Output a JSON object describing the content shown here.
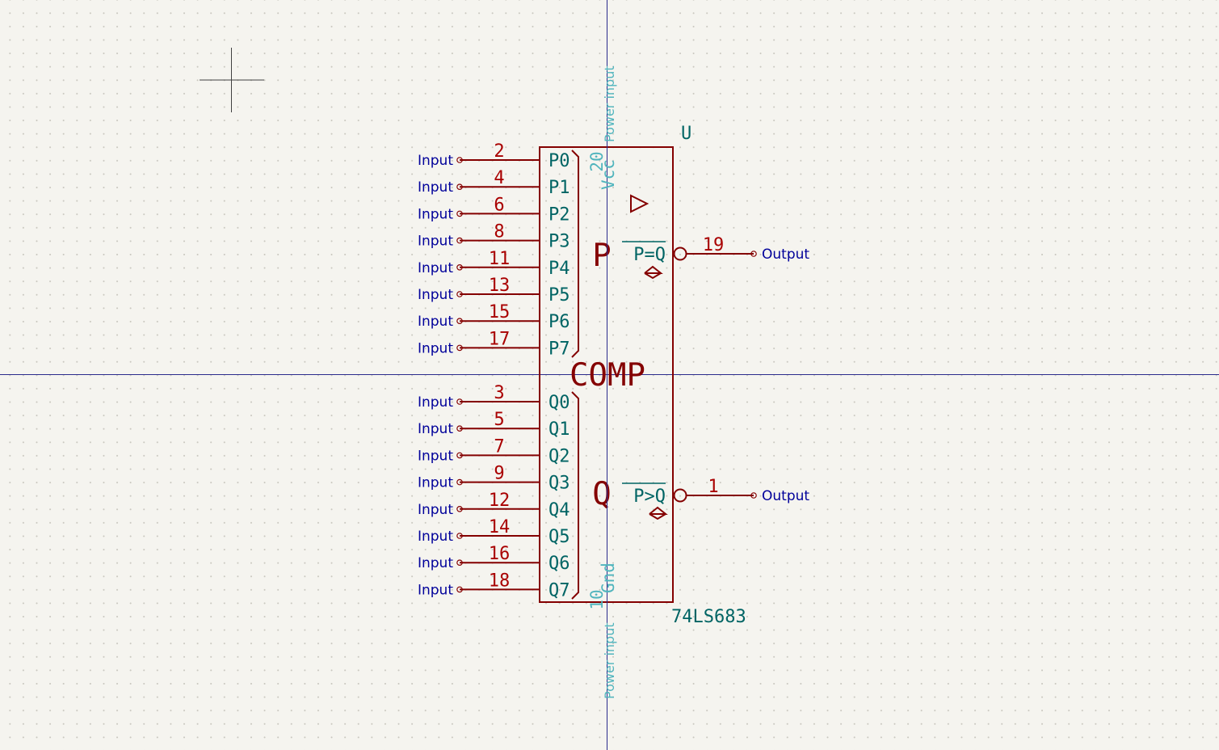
{
  "component": {
    "reference": "U",
    "value": "74LS683",
    "function_label": "COMP",
    "group_p_label": "P",
    "group_q_label": "Q",
    "buffer_symbol": "▷",
    "hysteresis_symbol": "◇"
  },
  "power_pins": {
    "vcc": {
      "number": "20",
      "name": "Vcc",
      "type": "Power input"
    },
    "gnd": {
      "number": "10",
      "name": "Gnd",
      "type": "Power input"
    }
  },
  "input_pins": [
    {
      "name": "P0",
      "number": "2",
      "type": "Input"
    },
    {
      "name": "P1",
      "number": "4",
      "type": "Input"
    },
    {
      "name": "P2",
      "number": "6",
      "type": "Input"
    },
    {
      "name": "P3",
      "number": "8",
      "type": "Input"
    },
    {
      "name": "P4",
      "number": "11",
      "type": "Input"
    },
    {
      "name": "P5",
      "number": "13",
      "type": "Input"
    },
    {
      "name": "P6",
      "number": "15",
      "type": "Input"
    },
    {
      "name": "P7",
      "number": "17",
      "type": "Input"
    },
    {
      "name": "Q0",
      "number": "3",
      "type": "Input"
    },
    {
      "name": "Q1",
      "number": "5",
      "type": "Input"
    },
    {
      "name": "Q2",
      "number": "7",
      "type": "Input"
    },
    {
      "name": "Q3",
      "number": "9",
      "type": "Input"
    },
    {
      "name": "Q4",
      "number": "12",
      "type": "Input"
    },
    {
      "name": "Q5",
      "number": "14",
      "type": "Input"
    },
    {
      "name": "Q6",
      "number": "16",
      "type": "Input"
    },
    {
      "name": "Q7",
      "number": "18",
      "type": "Input"
    }
  ],
  "output_pins": [
    {
      "name": "P=Q",
      "number": "19",
      "type": "Output"
    },
    {
      "name": "P>Q",
      "number": "1",
      "type": "Output"
    }
  ],
  "colors": {
    "body_outline": "#840000",
    "pin_number": "#a90000",
    "pin_name": "#006464",
    "pin_type": "#00009a",
    "power_text": "#4fb4bd",
    "crosshair": "#2b2b8c",
    "cursor": "#404040"
  }
}
